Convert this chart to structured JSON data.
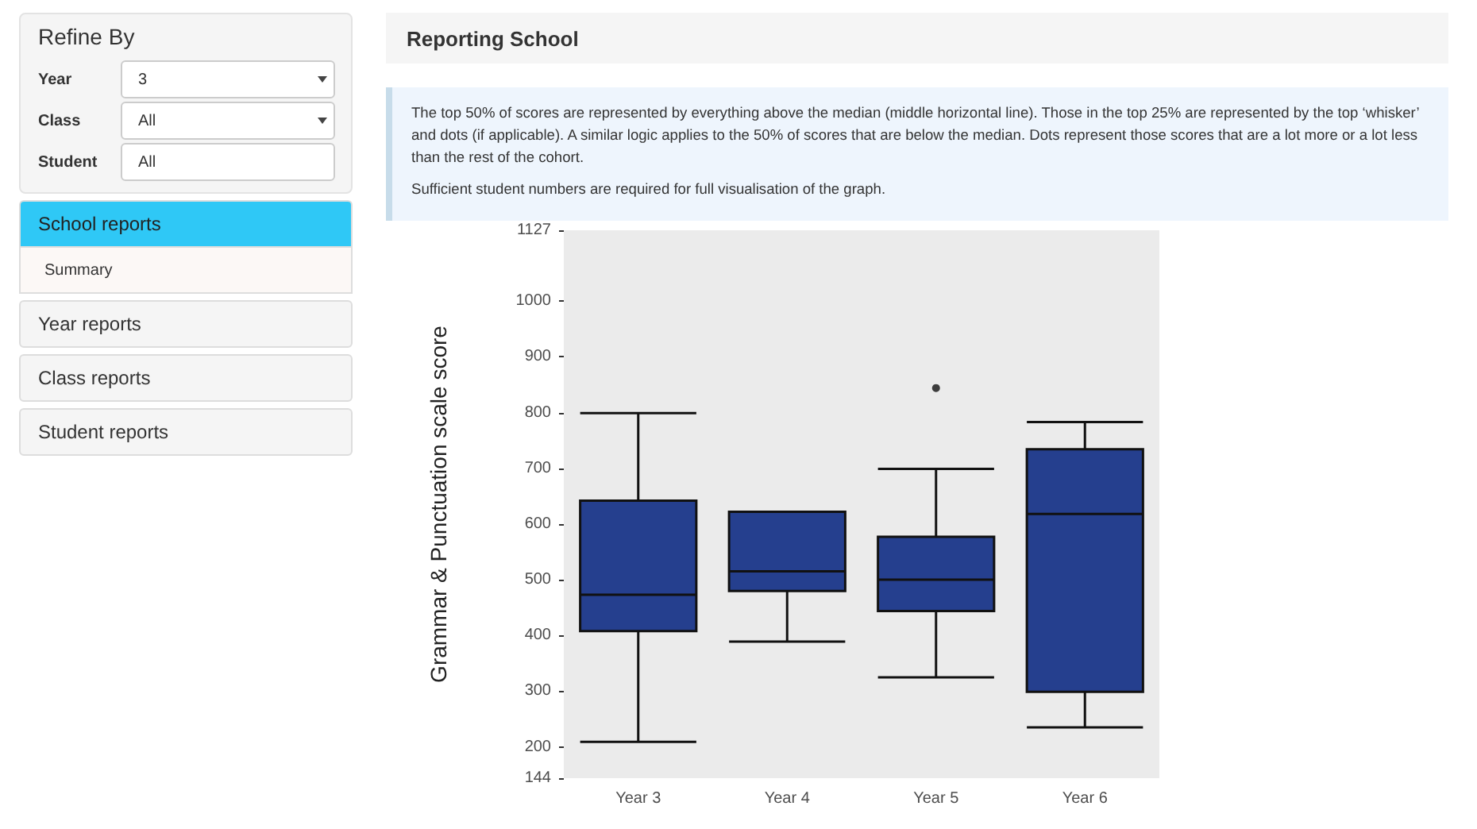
{
  "chart_data": [
    {
      "type": "other",
      "title": "Refine By",
      "annotations": [
        "Year",
        "3",
        "Class",
        "All",
        "Student",
        "All",
        "School reports",
        "Summary",
        "Year reports",
        "Class reports",
        "Student reports"
      ]
    },
    {
      "type": "box",
      "title": "Reporting School",
      "subtitle": "The top 50% of scores are represented by everything above the median (middle horizontal line). Those in the top 25% are represented by the top ‘whisker’ and dots (if applicable). A similar logic applies to the 50% of scores that are below the median. Dots represent those scores that are a lot more or a lot less than the rest of the cohort.",
      "annotations": [
        "Sufficient student numbers are required for full visualisation of the graph."
      ],
      "ylabel": "Grammar & Punctuation scale score",
      "categories": [
        "Year 3",
        "Year 4",
        "Year 5",
        "Year 6"
      ],
      "color": "#253f8e",
      "grid": false,
      "ylim": [
        144,
        1127
      ],
      "yticks": [
        144,
        200,
        300,
        400,
        500,
        600,
        700,
        800,
        900,
        1000,
        1127
      ],
      "boxes": [
        {
          "low": 209,
          "q1": 408,
          "median": 473,
          "q3": 642,
          "high": 799
        },
        {
          "low": 389,
          "q1": 480,
          "median": 515,
          "q3": 622,
          "high": 622
        },
        {
          "low": 325,
          "q1": 444,
          "median": 500,
          "q3": 577,
          "high": 699,
          "outliers": [
            844
          ]
        },
        {
          "low": 235,
          "q1": 299,
          "median": 618,
          "q3": 734,
          "high": 783
        }
      ]
    }
  ]
}
